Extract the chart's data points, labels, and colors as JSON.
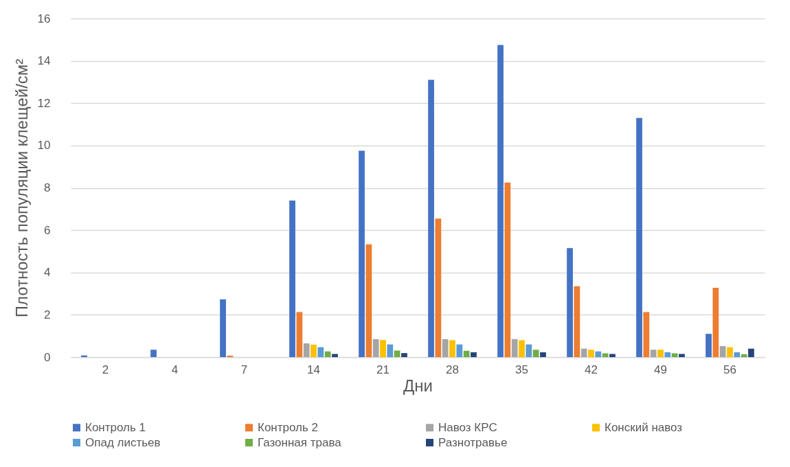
{
  "chart_data": {
    "type": "bar",
    "xlabel": "Дни",
    "ylabel": "Плотность популяции клещей/см²",
    "categories": [
      "2",
      "4",
      "7",
      "14",
      "21",
      "28",
      "35",
      "42",
      "49",
      "56"
    ],
    "ylim": [
      0,
      16
    ],
    "yticks": [
      0,
      2,
      4,
      6,
      8,
      10,
      12,
      14,
      16
    ],
    "grid": "y",
    "legend": "bottom",
    "series": [
      {
        "name": "Контроль 1",
        "color": "#4472c4",
        "values": [
          0.08,
          0.35,
          2.73,
          7.4,
          9.75,
          13.1,
          14.75,
          5.15,
          11.3,
          1.1
        ]
      },
      {
        "name": "Контроль 2",
        "color": "#ed7d31",
        "values": [
          null,
          null,
          0.07,
          2.13,
          5.33,
          6.55,
          8.25,
          3.35,
          2.13,
          3.28
        ]
      },
      {
        "name": "Навоз КРС",
        "color": "#a5a5a5",
        "values": [
          null,
          null,
          null,
          0.65,
          0.85,
          0.85,
          0.85,
          0.4,
          0.35,
          0.52
        ]
      },
      {
        "name": "Конский навоз",
        "color": "#ffc000",
        "values": [
          null,
          null,
          null,
          0.59,
          0.81,
          0.8,
          0.8,
          0.35,
          0.35,
          0.47
        ]
      },
      {
        "name": "Опад листьев",
        "color": "#5b9bd5",
        "values": [
          null,
          null,
          null,
          0.47,
          0.6,
          0.6,
          0.6,
          0.27,
          0.23,
          0.23
        ]
      },
      {
        "name": "Газонная трава",
        "color": "#70ad47",
        "values": [
          null,
          null,
          null,
          0.27,
          0.31,
          0.3,
          0.35,
          0.18,
          0.18,
          0.14
        ]
      },
      {
        "name": "Разнотравье",
        "color": "#264478",
        "values": [
          null,
          null,
          null,
          0.15,
          0.19,
          0.23,
          0.23,
          0.15,
          0.15,
          0.4
        ]
      }
    ]
  }
}
